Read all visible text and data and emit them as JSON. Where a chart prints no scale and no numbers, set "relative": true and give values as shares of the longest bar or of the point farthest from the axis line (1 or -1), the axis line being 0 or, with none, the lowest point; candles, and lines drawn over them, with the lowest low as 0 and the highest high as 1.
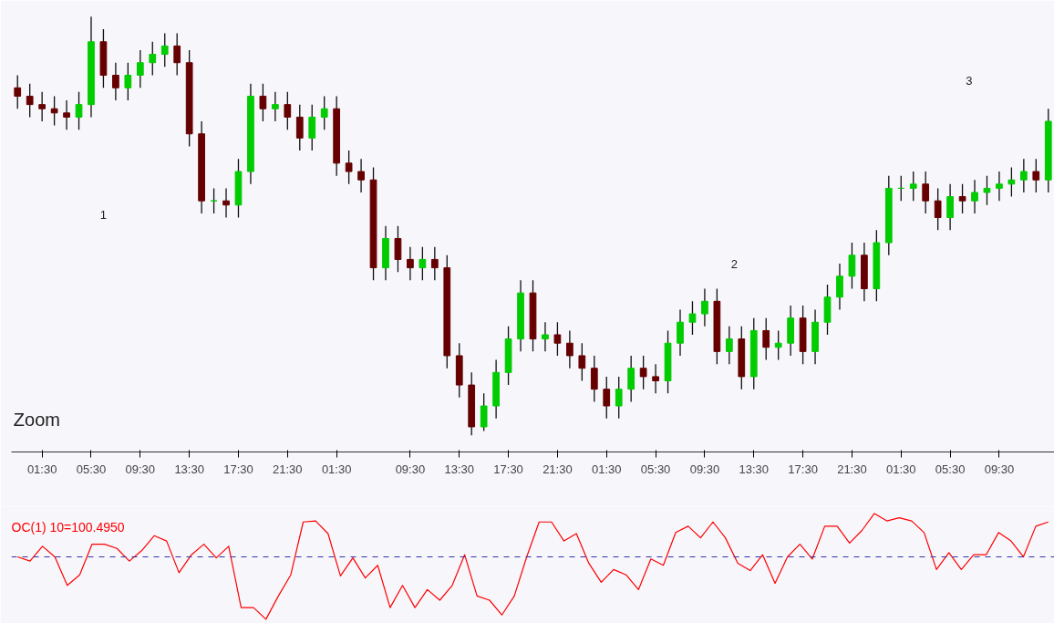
{
  "chart_data": [
    {
      "type": "candlestick",
      "relative": true,
      "grid": false,
      "colors": [
        "#660000",
        "#660000",
        "#660000",
        "#660000",
        "#660000",
        "#00cc00",
        "#00cc00",
        "#660000",
        "#660000",
        "#00cc00",
        "#00cc00",
        "#00cc00",
        "#00cc00",
        "#660000",
        "#660000",
        "#660000",
        "#00cc00",
        "#660000",
        "#00cc00",
        "#00cc00",
        "#660000",
        "#00cc00",
        "#660000",
        "#660000",
        "#00cc00",
        "#00cc00",
        "#660000",
        "#660000",
        "#660000",
        "#660000",
        "#00cc00",
        "#660000",
        "#660000",
        "#00cc00",
        "#660000",
        "#660000",
        "#660000",
        "#660000",
        "#00cc00",
        "#00cc00",
        "#00cc00",
        "#00cc00",
        "#660000",
        "#00cc00",
        "#660000",
        "#660000",
        "#660000",
        "#660000",
        "#660000",
        "#00cc00",
        "#00cc00",
        "#660000",
        "#660000",
        "#00cc00",
        "#00cc00",
        "#00cc00",
        "#00cc00",
        "#660000",
        "#00cc00",
        "#660000",
        "#00cc00",
        "#660000",
        "#00cc00",
        "#00cc00",
        "#660000",
        "#00cc00",
        "#00cc00",
        "#00cc00",
        "#00cc00",
        "#660000",
        "#00cc00",
        "#00cc00",
        "#00cc00",
        "#00cc00",
        "#660000",
        "#660000",
        "#00cc00",
        "#660000",
        "#00cc00",
        "#00cc00",
        "#00cc00",
        "#00cc00",
        "#00cc00",
        "#660000",
        "#00cc00"
      ],
      "annotations": [
        "1",
        "2",
        "3",
        "Zoom"
      ],
      "categories": [
        null,
        null,
        "01:30",
        null,
        null,
        null,
        "05:30",
        null,
        null,
        null,
        "09:30",
        null,
        null,
        null,
        "13:30",
        null,
        null,
        null,
        "17:30",
        null,
        null,
        null,
        "21:30",
        null,
        null,
        null,
        "01:30",
        null,
        null,
        null,
        null,
        null,
        "09:30",
        null,
        null,
        null,
        "13:30",
        null,
        null,
        null,
        "17:30",
        null,
        null,
        null,
        "21:30",
        null,
        null,
        null,
        "01:30",
        null,
        null,
        null,
        "05:30",
        null,
        null,
        null,
        "09:30",
        null,
        null,
        null,
        "13:30",
        null,
        null,
        null,
        "17:30",
        null,
        null,
        null,
        "21:30",
        null,
        null,
        null,
        "01:30",
        null,
        null,
        null,
        "05:30",
        null,
        null,
        null,
        "09:30",
        null,
        null,
        null,
        null
      ],
      "ohlc": [
        [
          0.83,
          0.86,
          0.78,
          0.81
        ],
        [
          0.81,
          0.84,
          0.76,
          0.79
        ],
        [
          0.79,
          0.82,
          0.75,
          0.78
        ],
        [
          0.78,
          0.81,
          0.74,
          0.77
        ],
        [
          0.77,
          0.8,
          0.73,
          0.76
        ],
        [
          0.76,
          0.82,
          0.73,
          0.79
        ],
        [
          0.79,
          1.0,
          0.76,
          0.94
        ],
        [
          0.94,
          0.97,
          0.83,
          0.86
        ],
        [
          0.86,
          0.89,
          0.8,
          0.83
        ],
        [
          0.83,
          0.89,
          0.8,
          0.86
        ],
        [
          0.86,
          0.92,
          0.83,
          0.89
        ],
        [
          0.89,
          0.94,
          0.86,
          0.91
        ],
        [
          0.91,
          0.96,
          0.88,
          0.93
        ],
        [
          0.93,
          0.96,
          0.86,
          0.89
        ],
        [
          0.89,
          0.92,
          0.69,
          0.72
        ],
        [
          0.72,
          0.75,
          0.53,
          0.56
        ],
        [
          0.56,
          0.59,
          0.53,
          0.56
        ],
        [
          0.56,
          0.59,
          0.52,
          0.55
        ],
        [
          0.55,
          0.66,
          0.52,
          0.63
        ],
        [
          0.63,
          0.84,
          0.6,
          0.81
        ],
        [
          0.81,
          0.84,
          0.75,
          0.78
        ],
        [
          0.78,
          0.82,
          0.75,
          0.79
        ],
        [
          0.79,
          0.82,
          0.73,
          0.76
        ],
        [
          0.76,
          0.79,
          0.68,
          0.71
        ],
        [
          0.71,
          0.79,
          0.68,
          0.76
        ],
        [
          0.76,
          0.81,
          0.73,
          0.78
        ],
        [
          0.78,
          0.81,
          0.62,
          0.65
        ],
        [
          0.65,
          0.68,
          0.6,
          0.63
        ],
        [
          0.63,
          0.66,
          0.58,
          0.61
        ],
        [
          0.61,
          0.64,
          0.37,
          0.4
        ],
        [
          0.4,
          0.5,
          0.37,
          0.47
        ],
        [
          0.47,
          0.5,
          0.39,
          0.42
        ],
        [
          0.42,
          0.45,
          0.37,
          0.4
        ],
        [
          0.4,
          0.45,
          0.37,
          0.42
        ],
        [
          0.42,
          0.45,
          0.37,
          0.4
        ],
        [
          0.4,
          0.43,
          0.16,
          0.19
        ],
        [
          0.19,
          0.22,
          0.09,
          0.12
        ],
        [
          0.12,
          0.15,
          0.0,
          0.02
        ],
        [
          0.02,
          0.1,
          0.01,
          0.07
        ],
        [
          0.07,
          0.18,
          0.04,
          0.15
        ],
        [
          0.15,
          0.26,
          0.12,
          0.23
        ],
        [
          0.23,
          0.37,
          0.2,
          0.34
        ],
        [
          0.34,
          0.37,
          0.2,
          0.23
        ],
        [
          0.23,
          0.27,
          0.2,
          0.24
        ],
        [
          0.24,
          0.27,
          0.19,
          0.22
        ],
        [
          0.22,
          0.25,
          0.16,
          0.19
        ],
        [
          0.19,
          0.22,
          0.13,
          0.16
        ],
        [
          0.16,
          0.19,
          0.08,
          0.11
        ],
        [
          0.11,
          0.14,
          0.04,
          0.07
        ],
        [
          0.07,
          0.14,
          0.04,
          0.11
        ],
        [
          0.11,
          0.19,
          0.08,
          0.16
        ],
        [
          0.16,
          0.19,
          0.11,
          0.14
        ],
        [
          0.14,
          0.17,
          0.1,
          0.13
        ],
        [
          0.13,
          0.25,
          0.1,
          0.22
        ],
        [
          0.22,
          0.3,
          0.19,
          0.27
        ],
        [
          0.27,
          0.32,
          0.24,
          0.29
        ],
        [
          0.29,
          0.35,
          0.26,
          0.32
        ],
        [
          0.32,
          0.35,
          0.17,
          0.2
        ],
        [
          0.2,
          0.26,
          0.17,
          0.23
        ],
        [
          0.23,
          0.26,
          0.11,
          0.14
        ],
        [
          0.14,
          0.28,
          0.11,
          0.25
        ],
        [
          0.25,
          0.28,
          0.18,
          0.21
        ],
        [
          0.21,
          0.25,
          0.18,
          0.22
        ],
        [
          0.22,
          0.31,
          0.19,
          0.28
        ],
        [
          0.28,
          0.31,
          0.17,
          0.2
        ],
        [
          0.2,
          0.3,
          0.17,
          0.27
        ],
        [
          0.27,
          0.36,
          0.24,
          0.33
        ],
        [
          0.33,
          0.41,
          0.3,
          0.38
        ],
        [
          0.38,
          0.46,
          0.35,
          0.43
        ],
        [
          0.43,
          0.46,
          0.32,
          0.35
        ],
        [
          0.35,
          0.49,
          0.32,
          0.46
        ],
        [
          0.46,
          0.62,
          0.43,
          0.59
        ],
        [
          0.59,
          0.62,
          0.56,
          0.59
        ],
        [
          0.59,
          0.63,
          0.56,
          0.6
        ],
        [
          0.6,
          0.63,
          0.53,
          0.56
        ],
        [
          0.56,
          0.59,
          0.49,
          0.52
        ],
        [
          0.52,
          0.6,
          0.49,
          0.57
        ],
        [
          0.57,
          0.6,
          0.53,
          0.56
        ],
        [
          0.56,
          0.61,
          0.53,
          0.58
        ],
        [
          0.58,
          0.62,
          0.55,
          0.59
        ],
        [
          0.59,
          0.63,
          0.56,
          0.6
        ],
        [
          0.6,
          0.64,
          0.57,
          0.61
        ],
        [
          0.61,
          0.66,
          0.58,
          0.63
        ],
        [
          0.63,
          0.66,
          0.58,
          0.61
        ],
        [
          0.61,
          0.78,
          0.58,
          0.75
        ]
      ]
    },
    {
      "type": "line",
      "relative": true,
      "grid": false,
      "title": "OC(1) 10=100.4950",
      "categories": [
        null,
        null,
        null,
        null,
        null,
        null,
        null,
        null,
        null,
        null,
        null,
        null,
        null,
        null,
        null,
        null,
        null,
        null,
        null,
        null,
        null,
        null,
        null,
        null,
        null,
        null,
        null,
        null,
        null,
        null,
        null,
        null,
        null,
        null,
        null,
        null,
        null,
        null,
        null,
        null,
        null,
        null,
        null,
        null,
        null,
        null,
        null,
        null,
        null,
        null,
        null,
        null,
        null,
        null,
        null,
        null,
        null,
        null,
        null,
        null,
        null,
        null,
        null,
        null,
        null,
        null,
        null,
        null,
        null,
        null,
        null,
        null,
        null,
        null,
        null,
        null,
        null,
        null,
        null,
        null,
        null,
        null,
        null,
        null
      ],
      "ref_lines": [
        {
          "axis": "y",
          "value": 0.59,
          "color": "#3333aa",
          "line_style": "dashed"
        }
      ],
      "series": [
        {
          "color": "#ff0000",
          "values": [
            0.59,
            0.55,
            0.69,
            0.59,
            0.32,
            0.42,
            0.71,
            0.71,
            0.67,
            0.55,
            0.65,
            0.79,
            0.74,
            0.44,
            0.61,
            0.71,
            0.58,
            0.69,
            0.11,
            0.11,
            0.0,
            0.22,
            0.42,
            0.92,
            0.93,
            0.81,
            0.41,
            0.58,
            0.39,
            0.51,
            0.11,
            0.32,
            0.11,
            0.28,
            0.18,
            0.32,
            0.61,
            0.22,
            0.18,
            0.04,
            0.22,
            0.59,
            0.92,
            0.92,
            0.74,
            0.81,
            0.53,
            0.35,
            0.47,
            0.42,
            0.28,
            0.57,
            0.51,
            0.82,
            0.88,
            0.77,
            0.92,
            0.77,
            0.53,
            0.46,
            0.61,
            0.34,
            0.59,
            0.71,
            0.57,
            0.88,
            0.88,
            0.72,
            0.84,
            1.0,
            0.93,
            0.96,
            0.93,
            0.82,
            0.47,
            0.63,
            0.47,
            0.61,
            0.61,
            0.82,
            0.74,
            0.59,
            0.88,
            0.92
          ]
        }
      ]
    }
  ]
}
